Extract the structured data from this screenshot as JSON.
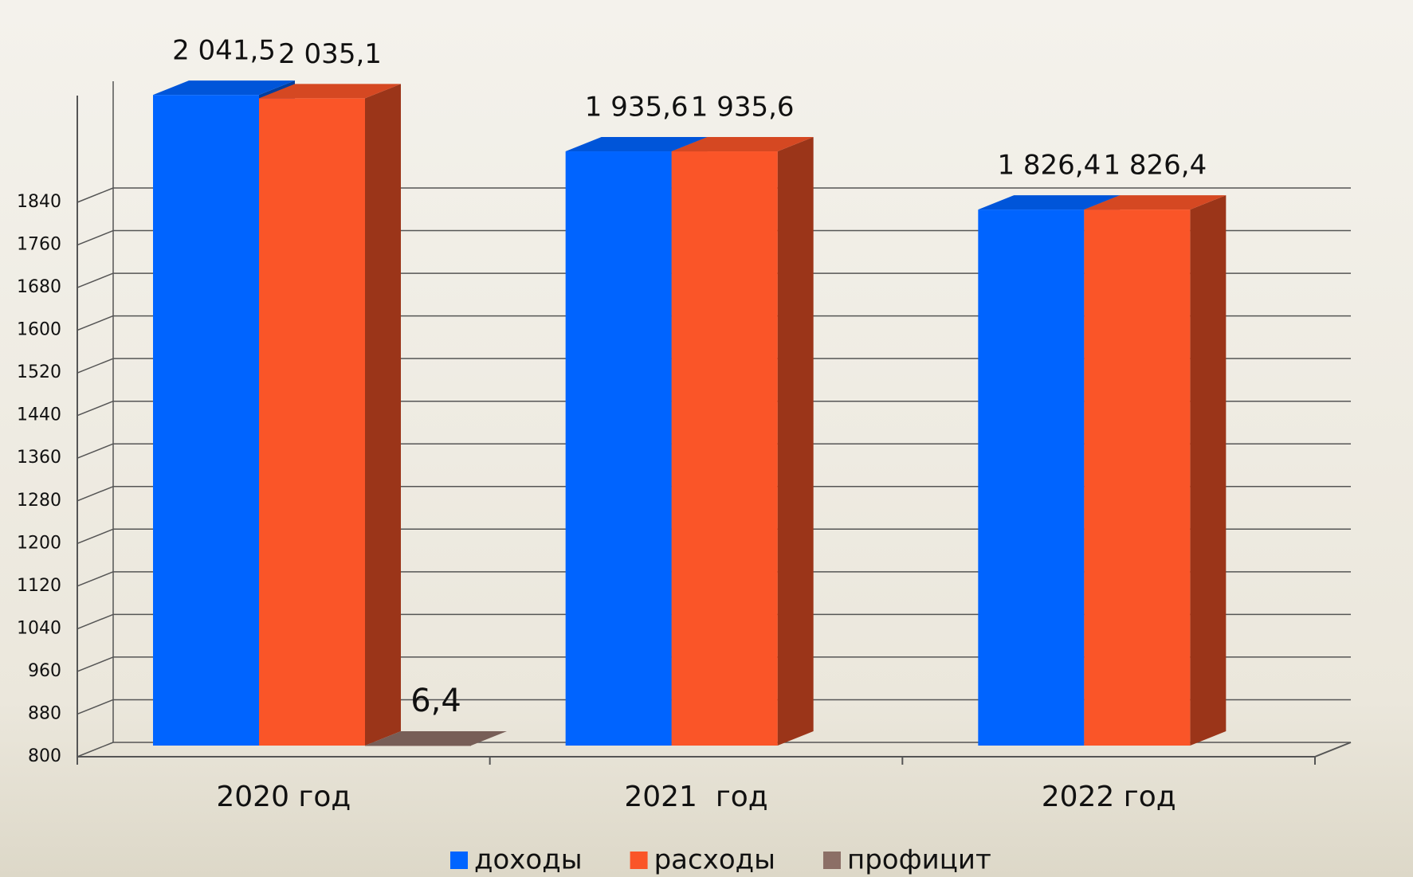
{
  "chart_data": {
    "type": "bar3d",
    "categories": [
      "2020 год",
      "2021  год",
      "2022 год"
    ],
    "series": [
      {
        "name": "доходы",
        "color": "#0064ff",
        "values": [
          2041.5,
          1935.6,
          1826.4
        ],
        "value_labels": [
          "2 041,5",
          "1 935,6",
          "1 826,4"
        ]
      },
      {
        "name": "расходы",
        "color": "#fa5528",
        "values": [
          2035.1,
          1935.6,
          1826.4
        ],
        "value_labels": [
          "2 035,1",
          "1 935,6",
          "1 826,4"
        ]
      },
      {
        "name": "профицит",
        "color": "#8c6f66",
        "values": [
          6.4,
          null,
          null
        ],
        "value_labels": [
          "6,4",
          null,
          null
        ]
      }
    ],
    "ylim": [
      800,
      2100
    ],
    "yticks": [
      800,
      880,
      960,
      1040,
      1120,
      1200,
      1280,
      1360,
      1440,
      1520,
      1600,
      1680,
      1760,
      1840
    ],
    "grid": true,
    "legend": "bottom"
  }
}
